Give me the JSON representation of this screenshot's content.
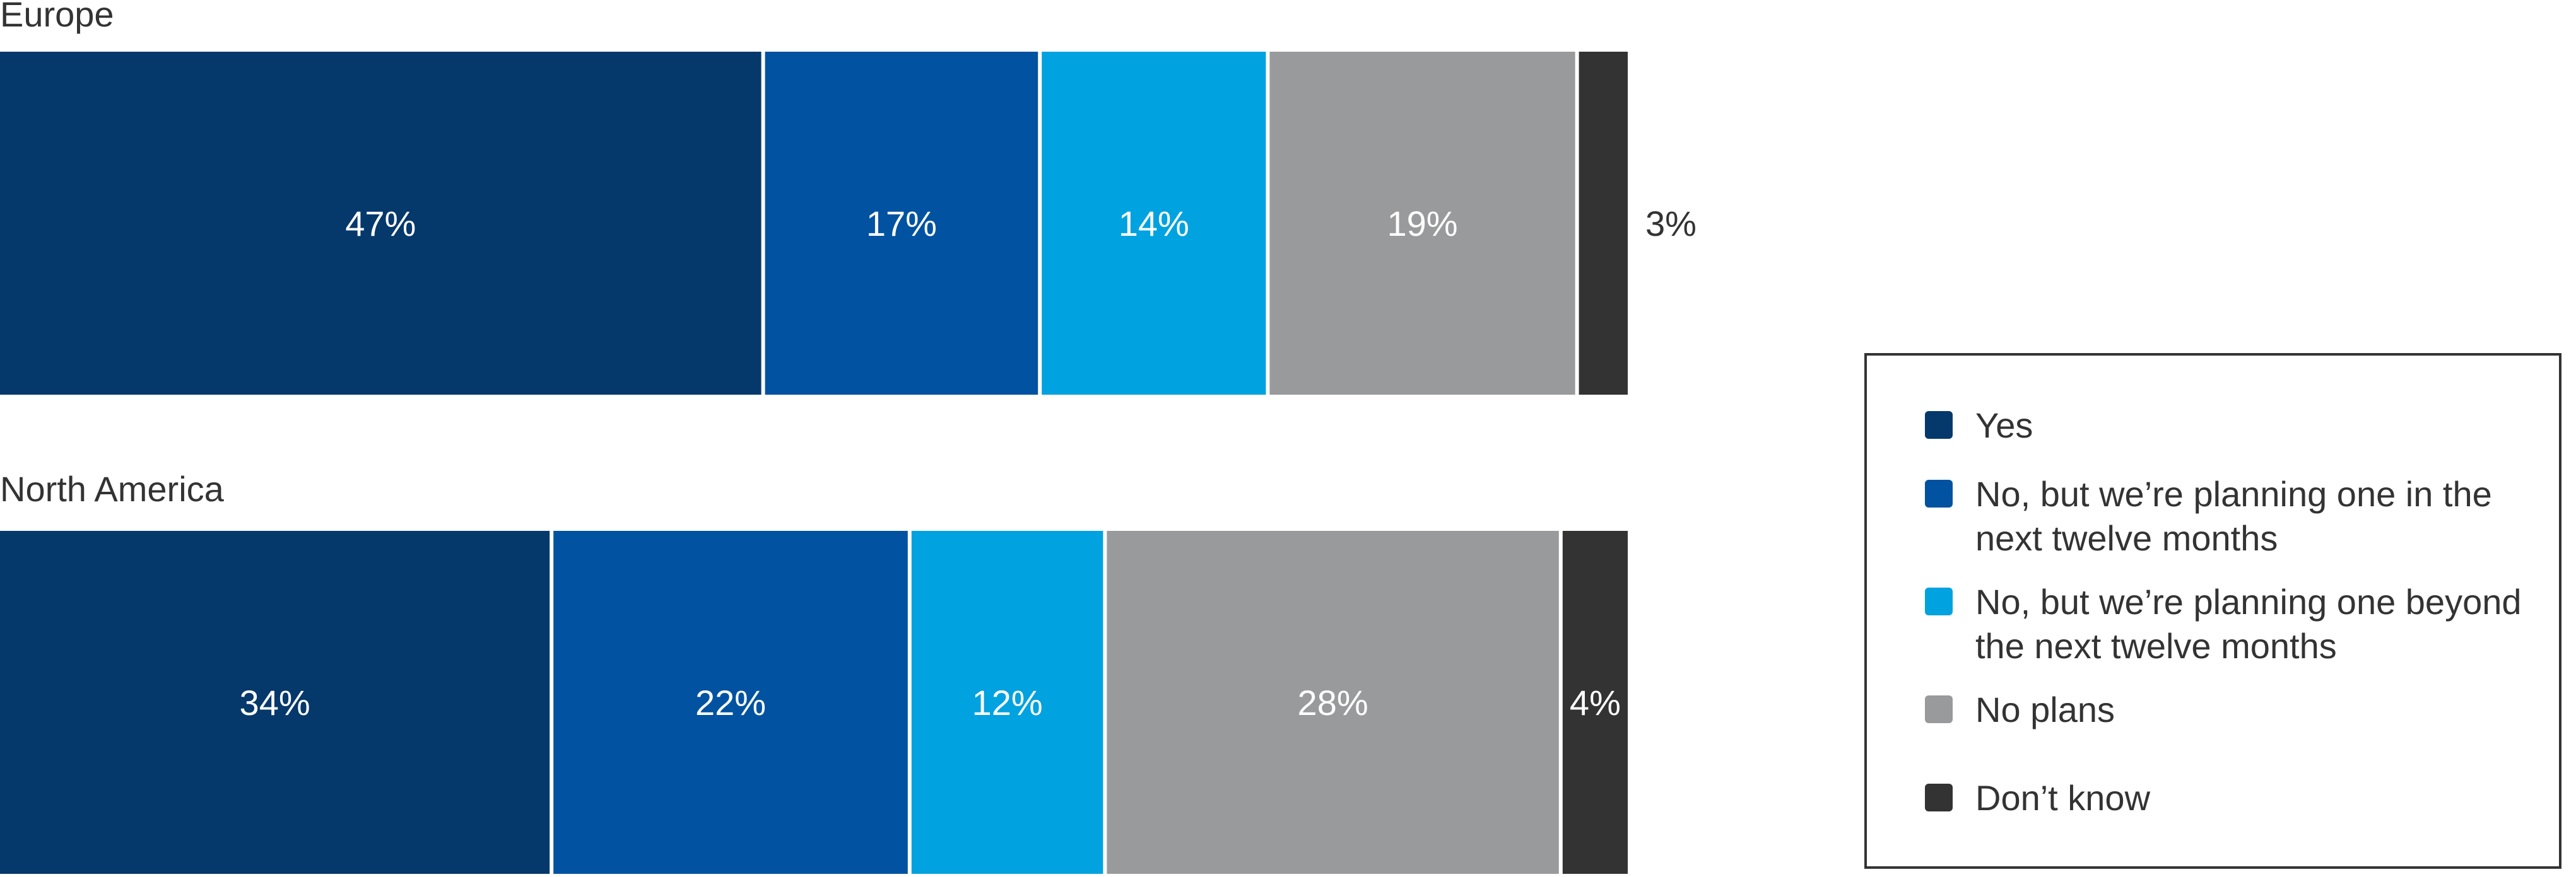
{
  "chart_data": {
    "type": "bar",
    "orientation": "horizontal",
    "stacked": true,
    "categories": [
      "Europe",
      "North America"
    ],
    "series": [
      {
        "name": "Yes",
        "color": "#05386b",
        "values": [
          47,
          34
        ]
      },
      {
        "name": "No, but we’re planning one in the next twelve months",
        "color": "#0152a1",
        "values": [
          17,
          22
        ]
      },
      {
        "name": "No, but we’re planning one beyond the next twelve months",
        "color": "#00a2e0",
        "values": [
          14,
          12
        ]
      },
      {
        "name": "No plans",
        "color": "#999a9c",
        "values": [
          19,
          28
        ]
      },
      {
        "name": "Don’t know",
        "color": "#333333",
        "values": [
          3,
          4
        ]
      }
    ],
    "data_labels": [
      [
        "47%",
        "17%",
        "14%",
        "19%",
        "3%"
      ],
      [
        "34%",
        "22%",
        "12%",
        "28%",
        "4%"
      ]
    ],
    "xlim": [
      0,
      100
    ],
    "grid": false,
    "legend_position": "right"
  }
}
